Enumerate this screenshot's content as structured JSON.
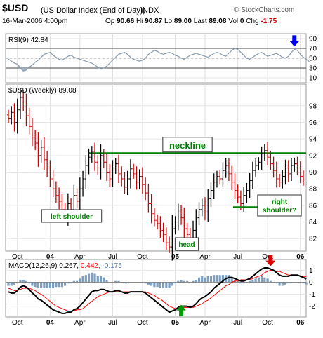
{
  "header": {
    "symbol": "$USD",
    "description": "(US Dollar Index (End of Day))",
    "exchange": "INDX",
    "source": "© StockCharts.com",
    "datetime": "16-Mar-2006 4:00pm",
    "open_label": "Op",
    "open": "90.66",
    "high_label": "Hi",
    "high": "90.87",
    "low_label": "Lo",
    "low": "89.00",
    "last_label": "Last",
    "last": "89.08",
    "volume_label": "Vol",
    "volume": "0",
    "change_label": "Chg",
    "change": "-1.75"
  },
  "colors": {
    "bar_up": "#000000",
    "bar_down": "#cc0000",
    "neckline": "#008000",
    "label_text": "#008000",
    "rsi_line": "#8899aa",
    "rsi_fill": "#9ab0c8",
    "macd_line": "#000000",
    "signal_line": "#ff0000",
    "histogram": "#7f9fbf",
    "arrow_blue": "#0000ee",
    "arrow_green": "#009900",
    "arrow_red": "#dd0000"
  },
  "chart_data": [
    {
      "type": "line",
      "panel": "rsi",
      "legend": "RSI(9) 42.84",
      "y_ticks": [
        10,
        30,
        50,
        70,
        90
      ],
      "ylim": [
        0,
        100
      ],
      "reference_lines": [
        30,
        70
      ],
      "series": [
        {
          "values": [
            48,
            44,
            40,
            38,
            30,
            24,
            26,
            32,
            36,
            42,
            46,
            52,
            58,
            60,
            62,
            56,
            52,
            48,
            46,
            50,
            54,
            56,
            52,
            50,
            48,
            46,
            44,
            42,
            40,
            36,
            32,
            28,
            30,
            34,
            40,
            46,
            52,
            58,
            60,
            62,
            58,
            52,
            48,
            46,
            44,
            46,
            50,
            58,
            62,
            66,
            64,
            60,
            58,
            60,
            62,
            60,
            56,
            54,
            50,
            48,
            52,
            56,
            58,
            60,
            58,
            56,
            54,
            52,
            56,
            60,
            62,
            60,
            56,
            54,
            60,
            66,
            70,
            68,
            62,
            56,
            50,
            48,
            52,
            56,
            60,
            62,
            58,
            54,
            56,
            58,
            60,
            56,
            52,
            50,
            54,
            62,
            68,
            66,
            58,
            52,
            48,
            43
          ]
        }
      ],
      "annotations": [
        {
          "type": "arrow",
          "direction": "down",
          "color": "#0000ee",
          "at_index": 96
        }
      ]
    },
    {
      "type": "ohlc",
      "panel": "price",
      "legend": "$USD (Weekly) 89.08",
      "x_tick_labels": [
        "Oct",
        "04",
        "Apr",
        "Jul",
        "Oct",
        "05",
        "Apr",
        "Jul",
        "Oct",
        "06"
      ],
      "y_ticks": [
        82,
        84,
        86,
        88,
        90,
        92,
        94,
        96,
        98
      ],
      "ylim": [
        80.5,
        100.6
      ],
      "close": [
        96.5,
        97.2,
        96.0,
        97.5,
        99.0,
        98.2,
        96.8,
        95.5,
        94.2,
        93.5,
        92.0,
        93.0,
        91.5,
        90.5,
        89.2,
        88.0,
        87.2,
        86.5,
        85.5,
        84.8,
        86.2,
        85.5,
        87.2,
        86.5,
        88.0,
        89.2,
        90.8,
        91.8,
        92.5,
        91.2,
        90.5,
        92.0,
        91.2,
        90.0,
        89.2,
        90.5,
        91.0,
        89.8,
        89.2,
        88.2,
        89.2,
        90.4,
        89.8,
        88.8,
        89.5,
        88.5,
        87.5,
        86.2,
        85.0,
        84.2,
        83.8,
        83.0,
        82.5,
        81.5,
        81.0,
        83.2,
        84.0,
        85.2,
        84.5,
        83.2,
        82.5,
        81.8,
        83.0,
        84.5,
        85.5,
        86.0,
        85.2,
        86.8,
        87.8,
        88.8,
        89.5,
        89.2,
        90.2,
        90.8,
        89.8,
        88.8,
        87.8,
        87.0,
        86.2,
        87.2,
        87.8,
        89.0,
        90.2,
        90.8,
        91.2,
        92.2,
        92.6,
        91.8,
        91.0,
        90.2,
        89.2,
        88.8,
        89.5,
        90.5,
        89.8,
        90.8,
        91.0,
        90.5,
        89.5,
        89.08
      ],
      "reference_lines": [
        {
          "type": "horizontal",
          "value": 92.3,
          "label": "neckline",
          "start_index": 27,
          "end_index": 100
        }
      ],
      "annotations": [
        {
          "text": "left shoulder",
          "near_index": 19
        },
        {
          "text": "head",
          "near_index": 54
        },
        {
          "text": "right\nshoulder?",
          "near_index": 78
        }
      ]
    },
    {
      "type": "line",
      "panel": "macd",
      "legend": {
        "name": "MACD(12,26,9)",
        "macd": "0.267",
        "signal": "0.442",
        "histogram": "-0.175"
      },
      "y_ticks": [
        -2,
        -1,
        0,
        1
      ],
      "ylim": [
        -2.9,
        1.9
      ],
      "series": [
        {
          "name": "MACD",
          "values": [
            -0.8,
            -0.9,
            -0.9,
            -0.7,
            -0.4,
            -0.3,
            -0.4,
            -0.6,
            -0.9,
            -1.1,
            -1.4,
            -1.5,
            -1.7,
            -1.9,
            -2.1,
            -2.3,
            -2.4,
            -2.5,
            -2.6,
            -2.6,
            -2.5,
            -2.5,
            -2.3,
            -2.2,
            -2.0,
            -1.7,
            -1.4,
            -1.1,
            -0.8,
            -0.7,
            -0.7,
            -0.6,
            -0.6,
            -0.7,
            -0.8,
            -0.8,
            -0.7,
            -0.7,
            -0.8,
            -0.9,
            -0.9,
            -0.8,
            -0.8,
            -0.8,
            -0.8,
            -0.8,
            -0.9,
            -1.1,
            -1.3,
            -1.5,
            -1.7,
            -1.9,
            -2.1,
            -2.3,
            -2.5,
            -2.4,
            -2.3,
            -2.1,
            -2.0,
            -2.0,
            -2.0,
            -2.1,
            -2.0,
            -1.8,
            -1.5,
            -1.3,
            -1.2,
            -1.0,
            -0.8,
            -0.5,
            -0.3,
            -0.1,
            0.1,
            0.3,
            0.4,
            0.4,
            0.3,
            0.2,
            0.1,
            0.1,
            0.2,
            0.3,
            0.5,
            0.7,
            0.9,
            1.1,
            1.2,
            1.2,
            1.1,
            1.0,
            0.8,
            0.6,
            0.5,
            0.5,
            0.5,
            0.6,
            0.6,
            0.6,
            0.5,
            0.4,
            0.267
          ]
        },
        {
          "name": "Signal",
          "values": [
            -0.5,
            -0.6,
            -0.7,
            -0.7,
            -0.6,
            -0.5,
            -0.5,
            -0.5,
            -0.6,
            -0.7,
            -0.9,
            -1.0,
            -1.2,
            -1.4,
            -1.6,
            -1.8,
            -2.0,
            -2.1,
            -2.2,
            -2.3,
            -2.4,
            -2.4,
            -2.4,
            -2.3,
            -2.3,
            -2.2,
            -2.0,
            -1.8,
            -1.6,
            -1.4,
            -1.2,
            -1.1,
            -1.0,
            -0.9,
            -0.8,
            -0.8,
            -0.8,
            -0.8,
            -0.8,
            -0.8,
            -0.8,
            -0.8,
            -0.8,
            -0.8,
            -0.8,
            -0.8,
            -0.8,
            -0.9,
            -1.0,
            -1.1,
            -1.3,
            -1.4,
            -1.6,
            -1.8,
            -2.0,
            -2.1,
            -2.2,
            -2.2,
            -2.2,
            -2.1,
            -2.1,
            -2.1,
            -2.1,
            -2.0,
            -1.9,
            -1.8,
            -1.6,
            -1.5,
            -1.3,
            -1.1,
            -0.9,
            -0.7,
            -0.5,
            -0.3,
            -0.2,
            0.0,
            0.1,
            0.1,
            0.2,
            0.2,
            0.2,
            0.2,
            0.3,
            0.4,
            0.5,
            0.6,
            0.8,
            0.9,
            1.0,
            1.0,
            0.9,
            0.9,
            0.8,
            0.7,
            0.6,
            0.6,
            0.6,
            0.6,
            0.5,
            0.5,
            0.442
          ]
        }
      ],
      "histogram": "macd_minus_signal",
      "annotations": [
        {
          "type": "arrow",
          "direction": "up",
          "color": "#009900",
          "at_index": 58
        },
        {
          "type": "arrow",
          "direction": "down",
          "color": "#dd0000",
          "at_index": 88
        }
      ]
    }
  ]
}
